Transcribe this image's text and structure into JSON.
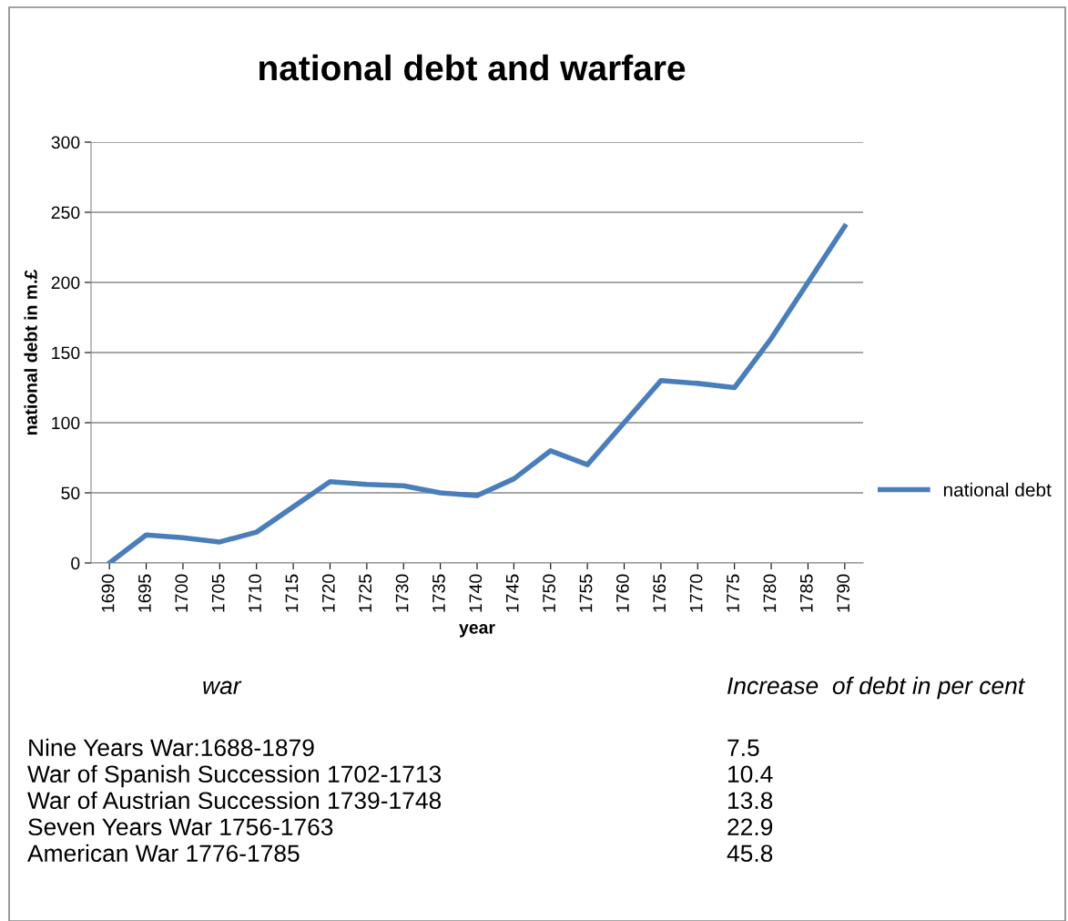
{
  "chart_data": {
    "type": "line",
    "title": "national debt and warfare",
    "xlabel": "year",
    "ylabel": "national debt in m.£",
    "categories": [
      "1690",
      "1695",
      "1700",
      "1705",
      "1710",
      "1715",
      "1720",
      "1725",
      "1730",
      "1735",
      "1740",
      "1745",
      "1750",
      "1755",
      "1760",
      "1765",
      "1770",
      "1775",
      "1780",
      "1785",
      "1790"
    ],
    "series": [
      {
        "name": "national debt",
        "color": "#4a7ebb",
        "values": [
          0,
          20,
          18,
          15,
          22,
          40,
          58,
          56,
          55,
          50,
          48,
          60,
          80,
          70,
          100,
          130,
          128,
          125,
          160,
          200,
          240
        ]
      }
    ],
    "ylim": [
      0,
      300
    ],
    "yticks": [
      0,
      50,
      100,
      150,
      200,
      250,
      300
    ],
    "grid": "y",
    "legend": "right",
    "marker": "none",
    "line_style": "solid",
    "annotations": [
      "war",
      "Increase  of debt in per cent",
      "Nine Years War:1688-1879",
      "7.5",
      "War of Spanish Succession 1702-1713",
      "10.4",
      "War of Austrian Succession 1739-1748",
      "13.8",
      "Seven Years War 1756-1763",
      "22.9",
      "American War 1776-1785",
      "45.8"
    ]
  }
}
